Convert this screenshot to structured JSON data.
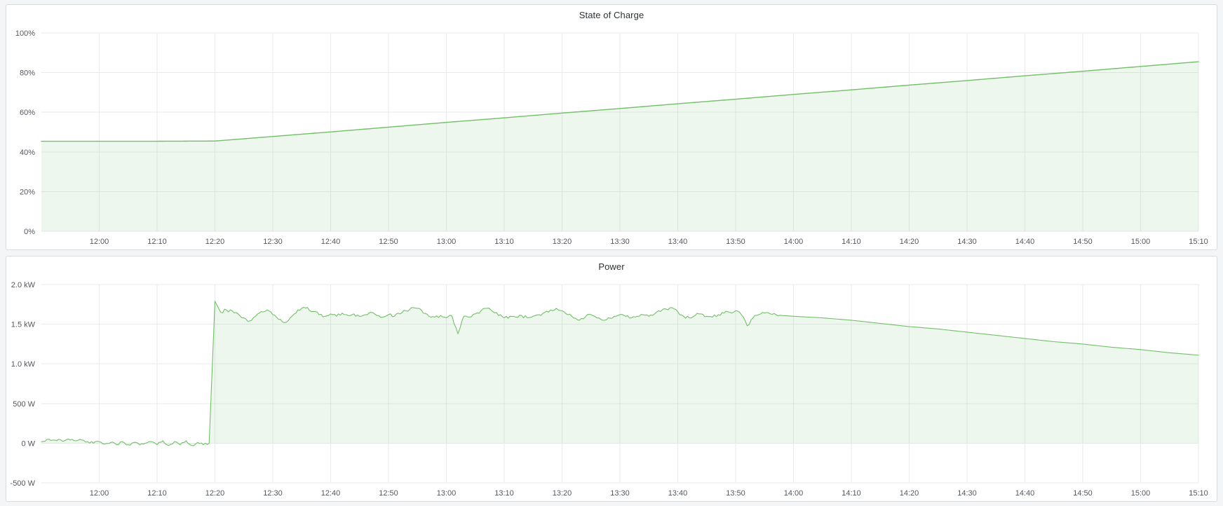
{
  "page": {
    "background_color": "#f4f5f6",
    "panel_background": "#ffffff",
    "panel_border_color": "#d8dbe0",
    "grid_color": "#e9eaec",
    "axis_text_color": "#54575e",
    "title_color": "#2c3235",
    "accent_green": "#73bf69"
  },
  "panels": [
    {
      "title": "State of Charge"
    },
    {
      "title": "Power"
    }
  ],
  "chart_data": [
    {
      "type": "area",
      "title": "State of Charge",
      "xlabel": "",
      "ylabel": "",
      "x_start": "11:50",
      "x_end": "15:10",
      "x_ticks": [
        "12:00",
        "12:10",
        "12:20",
        "12:30",
        "12:40",
        "12:50",
        "13:00",
        "13:10",
        "13:20",
        "13:30",
        "13:40",
        "13:50",
        "14:00",
        "14:10",
        "14:20",
        "14:30",
        "14:40",
        "14:50",
        "15:00",
        "15:10"
      ],
      "ylim": [
        0,
        100
      ],
      "y_ticks": [
        {
          "label": "100%",
          "value": 100
        },
        {
          "label": "80%",
          "value": 80
        },
        {
          "label": "60%",
          "value": 60
        },
        {
          "label": "40%",
          "value": 40
        },
        {
          "label": "20%",
          "value": 20
        },
        {
          "label": "0%",
          "value": 0
        }
      ],
      "baseline": 0,
      "grid": true,
      "legend": "none",
      "series": [
        {
          "name": "State of Charge",
          "unit": "%",
          "color": "#73bf69",
          "fill": "rgba(115,191,105,0.12)",
          "line_width": 1.4,
          "noise_regions": [],
          "points": [
            [
              "11:50",
              45.4
            ],
            [
              "12:00",
              45.4
            ],
            [
              "12:10",
              45.4
            ],
            [
              "12:20",
              45.5
            ],
            [
              "12:30",
              47.8
            ],
            [
              "12:40",
              50.1
            ],
            [
              "12:50",
              52.5
            ],
            [
              "13:00",
              54.9
            ],
            [
              "13:10",
              57.2
            ],
            [
              "13:20",
              59.6
            ],
            [
              "13:30",
              61.9
            ],
            [
              "13:40",
              64.3
            ],
            [
              "13:50",
              66.6
            ],
            [
              "14:00",
              69.0
            ],
            [
              "14:10",
              71.3
            ],
            [
              "14:20",
              73.7
            ],
            [
              "14:30",
              76.0
            ],
            [
              "14:40",
              78.4
            ],
            [
              "14:50",
              80.7
            ],
            [
              "15:00",
              83.1
            ],
            [
              "15:10",
              85.5
            ]
          ]
        }
      ]
    },
    {
      "type": "area",
      "title": "Power",
      "xlabel": "",
      "ylabel": "",
      "x_start": "11:50",
      "x_end": "15:10",
      "x_ticks": [
        "12:00",
        "12:10",
        "12:20",
        "12:30",
        "12:40",
        "12:50",
        "13:00",
        "13:10",
        "13:20",
        "13:30",
        "13:40",
        "13:50",
        "14:00",
        "14:10",
        "14:20",
        "14:30",
        "14:40",
        "14:50",
        "15:00",
        "15:10"
      ],
      "ylim": [
        -0.5,
        2.0
      ],
      "y_ticks": [
        {
          "label": "2.0 kW",
          "value": 2.0
        },
        {
          "label": "1.5 kW",
          "value": 1.5
        },
        {
          "label": "1.0 kW",
          "value": 1.0
        },
        {
          "label": "500 W",
          "value": 0.5
        },
        {
          "label": "0 W",
          "value": 0
        },
        {
          "label": "-500 W",
          "value": -0.5
        }
      ],
      "baseline": 0,
      "grid": true,
      "legend": "none",
      "series": [
        {
          "name": "Power",
          "unit": "kW",
          "color": "#73bf69",
          "fill": "rgba(115,191,105,0.12)",
          "line_width": 1.1,
          "noise_regions": [
            {
              "from": "11:50",
              "to": "12:19",
              "amp": 0.016
            },
            {
              "from": "12:21",
              "to": "13:58",
              "amp": 0.021
            }
          ],
          "points": [
            [
              "11:50",
              0.02
            ],
            [
              "11:51",
              0.05
            ],
            [
              "11:52",
              0.04
            ],
            [
              "11:53",
              0.05
            ],
            [
              "11:54",
              0.03
            ],
            [
              "11:55",
              0.04
            ],
            [
              "11:56",
              0.03
            ],
            [
              "11:57",
              0.04
            ],
            [
              "11:58",
              0.02
            ],
            [
              "11:59",
              0.0
            ],
            [
              "12:00",
              0.02
            ],
            [
              "12:01",
              -0.01
            ],
            [
              "12:02",
              0.01
            ],
            [
              "12:03",
              -0.02
            ],
            [
              "12:04",
              0.02
            ],
            [
              "12:05",
              -0.02
            ],
            [
              "12:06",
              0.01
            ],
            [
              "12:07",
              -0.02
            ],
            [
              "12:08",
              0.0
            ],
            [
              "12:09",
              0.02
            ],
            [
              "12:10",
              -0.02
            ],
            [
              "12:11",
              0.03
            ],
            [
              "12:12",
              -0.03
            ],
            [
              "12:13",
              0.02
            ],
            [
              "12:14",
              -0.02
            ],
            [
              "12:15",
              0.03
            ],
            [
              "12:16",
              -0.03
            ],
            [
              "12:17",
              0.01
            ],
            [
              "12:18",
              -0.02
            ],
            [
              "12:19",
              0.0
            ],
            [
              "12:20",
              1.79
            ],
            [
              "12:21",
              1.65
            ],
            [
              "12:22",
              1.68
            ],
            [
              "12:24",
              1.63
            ],
            [
              "12:25",
              1.58
            ],
            [
              "12:26",
              1.54
            ],
            [
              "12:27",
              1.6
            ],
            [
              "12:28",
              1.66
            ],
            [
              "12:29",
              1.68
            ],
            [
              "12:30",
              1.62
            ],
            [
              "12:31",
              1.56
            ],
            [
              "12:32",
              1.52
            ],
            [
              "12:33",
              1.58
            ],
            [
              "12:34",
              1.64
            ],
            [
              "12:35",
              1.7
            ],
            [
              "12:36",
              1.71
            ],
            [
              "12:37",
              1.66
            ],
            [
              "12:38",
              1.62
            ],
            [
              "12:39",
              1.6
            ],
            [
              "12:40",
              1.63
            ],
            [
              "12:41",
              1.6
            ],
            [
              "12:42",
              1.64
            ],
            [
              "12:43",
              1.61
            ],
            [
              "12:44",
              1.63
            ],
            [
              "12:45",
              1.6
            ],
            [
              "12:46",
              1.62
            ],
            [
              "12:47",
              1.65
            ],
            [
              "12:48",
              1.61
            ],
            [
              "12:49",
              1.59
            ],
            [
              "12:50",
              1.62
            ],
            [
              "12:51",
              1.6
            ],
            [
              "12:52",
              1.63
            ],
            [
              "12:53",
              1.67
            ],
            [
              "12:54",
              1.71
            ],
            [
              "12:55",
              1.7
            ],
            [
              "12:56",
              1.64
            ],
            [
              "12:57",
              1.6
            ],
            [
              "12:58",
              1.59
            ],
            [
              "12:59",
              1.61
            ],
            [
              "13:00",
              1.58
            ],
            [
              "13:01",
              1.6
            ],
            [
              "13:02",
              1.38
            ],
            [
              "13:03",
              1.6
            ],
            [
              "13:04",
              1.59
            ],
            [
              "13:05",
              1.63
            ],
            [
              "13:06",
              1.67
            ],
            [
              "13:07",
              1.7
            ],
            [
              "13:08",
              1.66
            ],
            [
              "13:09",
              1.61
            ],
            [
              "13:10",
              1.58
            ],
            [
              "13:11",
              1.6
            ],
            [
              "13:12",
              1.59
            ],
            [
              "13:13",
              1.61
            ],
            [
              "13:14",
              1.58
            ],
            [
              "13:15",
              1.6
            ],
            [
              "13:16",
              1.62
            ],
            [
              "13:17",
              1.65
            ],
            [
              "13:18",
              1.68
            ],
            [
              "13:19",
              1.7
            ],
            [
              "13:20",
              1.67
            ],
            [
              "13:21",
              1.62
            ],
            [
              "13:22",
              1.58
            ],
            [
              "13:23",
              1.55
            ],
            [
              "13:24",
              1.59
            ],
            [
              "13:25",
              1.62
            ],
            [
              "13:26",
              1.58
            ],
            [
              "13:27",
              1.55
            ],
            [
              "13:28",
              1.58
            ],
            [
              "13:29",
              1.6
            ],
            [
              "13:30",
              1.62
            ],
            [
              "13:31",
              1.6
            ],
            [
              "13:32",
              1.58
            ],
            [
              "13:33",
              1.6
            ],
            [
              "13:34",
              1.62
            ],
            [
              "13:35",
              1.6
            ],
            [
              "13:36",
              1.63
            ],
            [
              "13:37",
              1.66
            ],
            [
              "13:38",
              1.69
            ],
            [
              "13:39",
              1.71
            ],
            [
              "13:40",
              1.66
            ],
            [
              "13:41",
              1.6
            ],
            [
              "13:42",
              1.58
            ],
            [
              "13:43",
              1.61
            ],
            [
              "13:44",
              1.63
            ],
            [
              "13:45",
              1.6
            ],
            [
              "13:46",
              1.59
            ],
            [
              "13:47",
              1.62
            ],
            [
              "13:48",
              1.64
            ],
            [
              "13:49",
              1.65
            ],
            [
              "13:50",
              1.67
            ],
            [
              "13:51",
              1.62
            ],
            [
              "13:52",
              1.48
            ],
            [
              "13:53",
              1.58
            ],
            [
              "13:54",
              1.62
            ],
            [
              "13:55",
              1.64
            ],
            [
              "13:56",
              1.63
            ],
            [
              "13:57",
              1.62
            ],
            [
              "13:58",
              1.61
            ],
            [
              "14:00",
              1.6
            ],
            [
              "14:05",
              1.58
            ],
            [
              "14:10",
              1.55
            ],
            [
              "14:15",
              1.51
            ],
            [
              "14:20",
              1.47
            ],
            [
              "14:25",
              1.44
            ],
            [
              "14:30",
              1.4
            ],
            [
              "14:35",
              1.36
            ],
            [
              "14:40",
              1.32
            ],
            [
              "14:45",
              1.28
            ],
            [
              "14:50",
              1.25
            ],
            [
              "14:55",
              1.21
            ],
            [
              "15:00",
              1.18
            ],
            [
              "15:05",
              1.14
            ],
            [
              "15:10",
              1.11
            ]
          ]
        }
      ]
    }
  ]
}
